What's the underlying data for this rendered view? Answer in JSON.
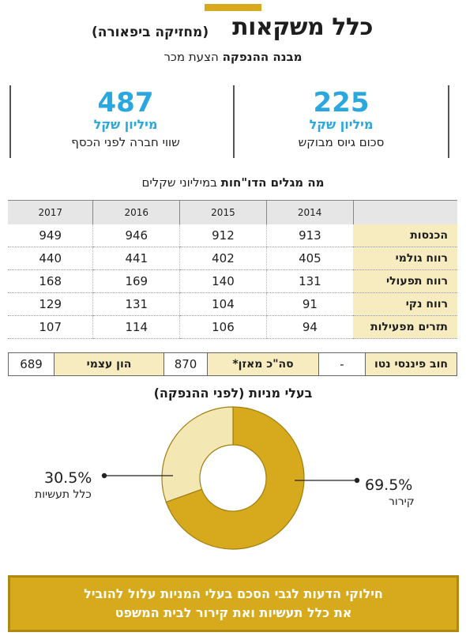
{
  "header": {
    "title": "כלל משקאות",
    "subtitle": "(מחזיקה ביפאורה)",
    "offer_bold": "מבנה ההנפקה",
    "offer_regular": "הצעת מכר"
  },
  "stats": [
    {
      "value": "225",
      "unit": "מיליון שקל",
      "desc": "סכום גיוס מבוקש"
    },
    {
      "value": "487",
      "unit": "מיליון שקל",
      "desc": "שווי חברה לפני הכסף"
    }
  ],
  "table": {
    "heading_bold": "מה מגלים הדו\"חות",
    "heading_regular": "במיליוני שקלים",
    "years": [
      "2014",
      "2015",
      "2016",
      "2017"
    ],
    "rows": [
      {
        "label": "הכנסות",
        "values": [
          "913",
          "912",
          "946",
          "949"
        ]
      },
      {
        "label": "רווח גולמי",
        "values": [
          "405",
          "402",
          "441",
          "440"
        ]
      },
      {
        "label": "רווח תפעולי",
        "values": [
          "131",
          "140",
          "169",
          "168"
        ]
      },
      {
        "label": "רווח נקי",
        "values": [
          "91",
          "104",
          "131",
          "129"
        ]
      },
      {
        "label": "תזרים מפעילות",
        "values": [
          "94",
          "106",
          "114",
          "107"
        ]
      }
    ]
  },
  "balance": {
    "net_debt_label": "חוב פיננסי נטו",
    "net_debt_value": "-",
    "total_balance_label": "סה\"כ מאזן*",
    "total_balance_value": "870",
    "equity_label": "הון עצמי",
    "equity_value": "689"
  },
  "chart_data": {
    "type": "pie",
    "title": "בעלי מניות (לפני ההנפקה)",
    "slices": [
      {
        "label": "קירור",
        "value": 69.5,
        "display": "69.5%",
        "color": "#d6aa1c"
      },
      {
        "label": "כלל תעשיות",
        "value": 30.5,
        "display": "30.5%",
        "color": "#f3e7b4"
      }
    ]
  },
  "footer": {
    "line1": "חילוקי הדעות לגבי הסכם בעלי המניות עלול להוביל",
    "line2": "את כלל תעשיות ואת קירור לבית המשפט"
  }
}
